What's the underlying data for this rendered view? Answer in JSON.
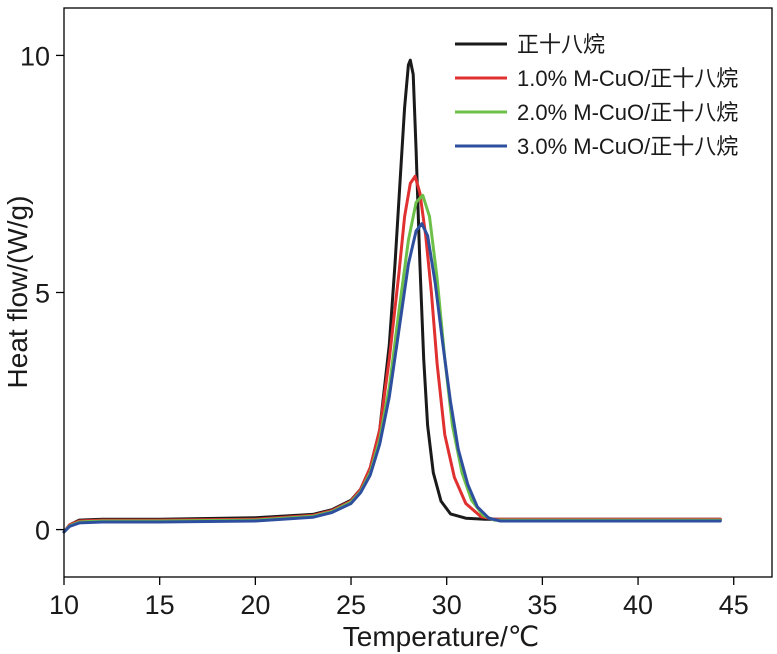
{
  "chart_data": {
    "type": "line",
    "title": "",
    "xlabel": "Temperature/℃",
    "ylabel": "Heat flow/(W/g)",
    "xlim": [
      10,
      47
    ],
    "ylim": [
      -1,
      11
    ],
    "xticks": [
      10,
      15,
      20,
      25,
      30,
      35,
      40,
      45
    ],
    "yticks": [
      0,
      5,
      10
    ],
    "grid": false,
    "legend_position": "top-right",
    "series": [
      {
        "name": "正十八烷",
        "color": "#1a1a1a",
        "x": [
          10,
          10.3,
          10.8,
          12,
          15,
          20,
          23,
          24,
          25,
          25.5,
          26,
          26.5,
          27,
          27.3,
          27.6,
          27.8,
          28,
          28.1,
          28.25,
          28.4,
          28.6,
          28.8,
          29,
          29.3,
          29.7,
          30.2,
          31,
          32,
          35,
          40,
          44.3
        ],
        "y": [
          -0.05,
          0.1,
          0.2,
          0.22,
          0.22,
          0.25,
          0.32,
          0.42,
          0.62,
          0.85,
          1.3,
          2.1,
          3.9,
          5.6,
          7.6,
          8.9,
          9.8,
          9.9,
          9.6,
          8.0,
          5.6,
          3.6,
          2.2,
          1.2,
          0.6,
          0.33,
          0.24,
          0.22,
          0.22,
          0.22,
          0.22
        ]
      },
      {
        "name": "1.0% M-CuO/正十八烷",
        "color": "#e03030",
        "x": [
          10,
          10.3,
          10.8,
          12,
          15,
          20,
          23,
          24,
          25,
          25.5,
          26,
          26.5,
          27,
          27.5,
          27.8,
          28.1,
          28.35,
          28.6,
          28.9,
          29.2,
          29.5,
          29.9,
          30.4,
          31,
          31.8,
          32.5,
          35,
          40,
          44.3
        ],
        "y": [
          -0.05,
          0.1,
          0.18,
          0.2,
          0.2,
          0.22,
          0.3,
          0.4,
          0.6,
          0.85,
          1.3,
          2.1,
          3.6,
          5.4,
          6.6,
          7.3,
          7.45,
          7.1,
          6.2,
          5.0,
          3.5,
          2.0,
          1.1,
          0.55,
          0.27,
          0.22,
          0.22,
          0.22,
          0.22
        ]
      },
      {
        "name": "2.0% M-CuO/正十八烷",
        "color": "#6cc04a",
        "x": [
          10,
          10.3,
          10.8,
          12,
          15,
          20,
          23,
          24,
          25,
          25.5,
          26,
          26.5,
          27,
          27.5,
          28,
          28.4,
          28.75,
          29.1,
          29.5,
          29.9,
          30.3,
          30.8,
          31.3,
          31.9,
          32.5,
          35,
          40,
          44.3
        ],
        "y": [
          -0.05,
          0.08,
          0.16,
          0.18,
          0.18,
          0.2,
          0.28,
          0.38,
          0.58,
          0.8,
          1.2,
          1.9,
          3.0,
          4.6,
          6.1,
          6.9,
          7.05,
          6.6,
          5.3,
          3.6,
          2.2,
          1.2,
          0.62,
          0.3,
          0.2,
          0.2,
          0.2,
          0.2
        ]
      },
      {
        "name": "3.0% M-CuO/正十八烷",
        "color": "#2e4f9e",
        "x": [
          10,
          10.3,
          10.8,
          12,
          15,
          20,
          23,
          24,
          25,
          25.5,
          26,
          26.5,
          27,
          27.5,
          28,
          28.4,
          28.7,
          29,
          29.4,
          29.8,
          30.2,
          30.6,
          31.1,
          31.6,
          32.2,
          32.8,
          35,
          40,
          44.3
        ],
        "y": [
          -0.05,
          0.07,
          0.14,
          0.16,
          0.16,
          0.18,
          0.26,
          0.36,
          0.55,
          0.78,
          1.15,
          1.8,
          2.8,
          4.2,
          5.6,
          6.3,
          6.45,
          6.2,
          5.2,
          3.9,
          2.7,
          1.7,
          0.95,
          0.48,
          0.24,
          0.18,
          0.18,
          0.18,
          0.18
        ]
      }
    ]
  }
}
